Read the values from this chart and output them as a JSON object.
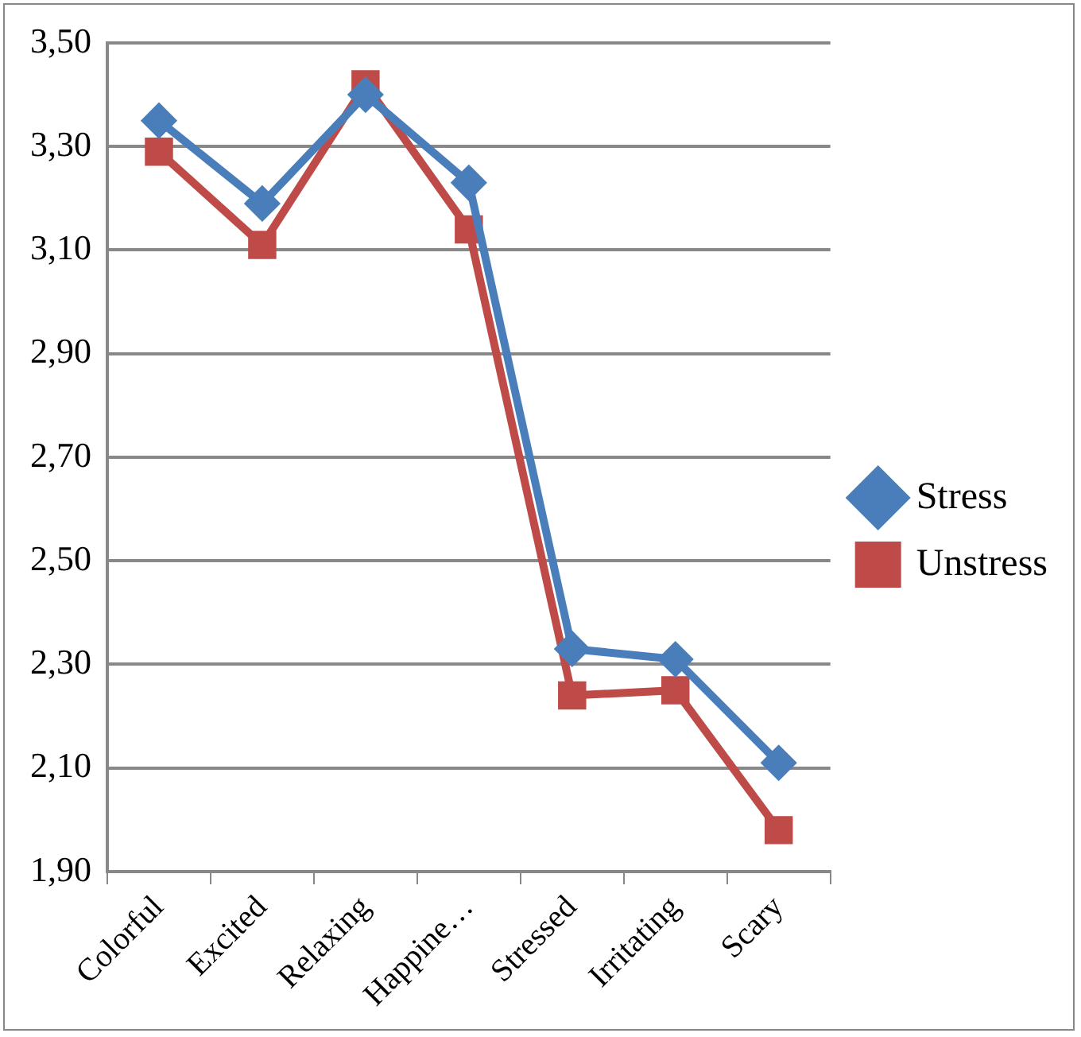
{
  "chart_data": {
    "type": "line",
    "categories": [
      "Colorful",
      "Excited",
      "Relaxing",
      "Happine…",
      "Stressed",
      "Irritating",
      "Scary"
    ],
    "series": [
      {
        "name": "Stress",
        "color": "#4a7ebb",
        "marker": "diamond",
        "values": [
          3.35,
          3.19,
          3.4,
          3.23,
          2.33,
          2.31,
          2.11
        ]
      },
      {
        "name": "Unstress",
        "color": "#be4b48",
        "marker": "square",
        "values": [
          3.29,
          3.11,
          3.42,
          3.14,
          2.24,
          2.25,
          1.98
        ]
      }
    ],
    "ylim": [
      1.9,
      3.5
    ],
    "yticks": [
      {
        "value": 1.9,
        "label": "1,90"
      },
      {
        "value": 2.1,
        "label": "2,10"
      },
      {
        "value": 2.3,
        "label": "2,30"
      },
      {
        "value": 2.5,
        "label": "2,50"
      },
      {
        "value": 2.7,
        "label": "2,70"
      },
      {
        "value": 2.9,
        "label": "2,90"
      },
      {
        "value": 3.1,
        "label": "3,10"
      },
      {
        "value": 3.3,
        "label": "3,30"
      },
      {
        "value": 3.5,
        "label": "3,50"
      }
    ],
    "grid": "y",
    "legend": "right",
    "line_style": "solid"
  }
}
